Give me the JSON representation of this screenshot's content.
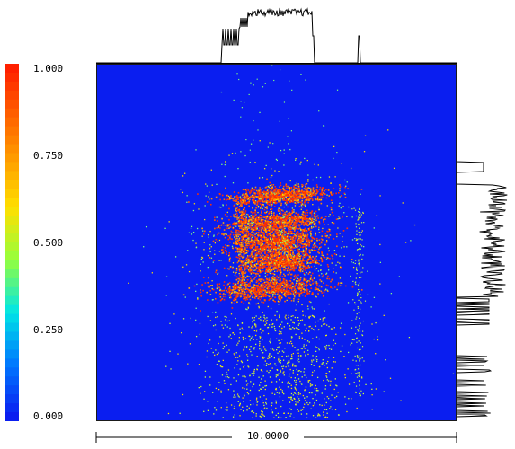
{
  "colorbar": {
    "labels": [
      "1.000",
      "0.750",
      "0.500",
      "0.250",
      "0.000"
    ],
    "colors": [
      "#ff2000",
      "#ff8000",
      "#ffe000",
      "#40ff80",
      "#00c8ff",
      "#0020ff"
    ]
  },
  "scale": {
    "label": "10.0000"
  },
  "plot": {
    "background": "#0a1ef0",
    "profile_color": "#000000"
  }
}
